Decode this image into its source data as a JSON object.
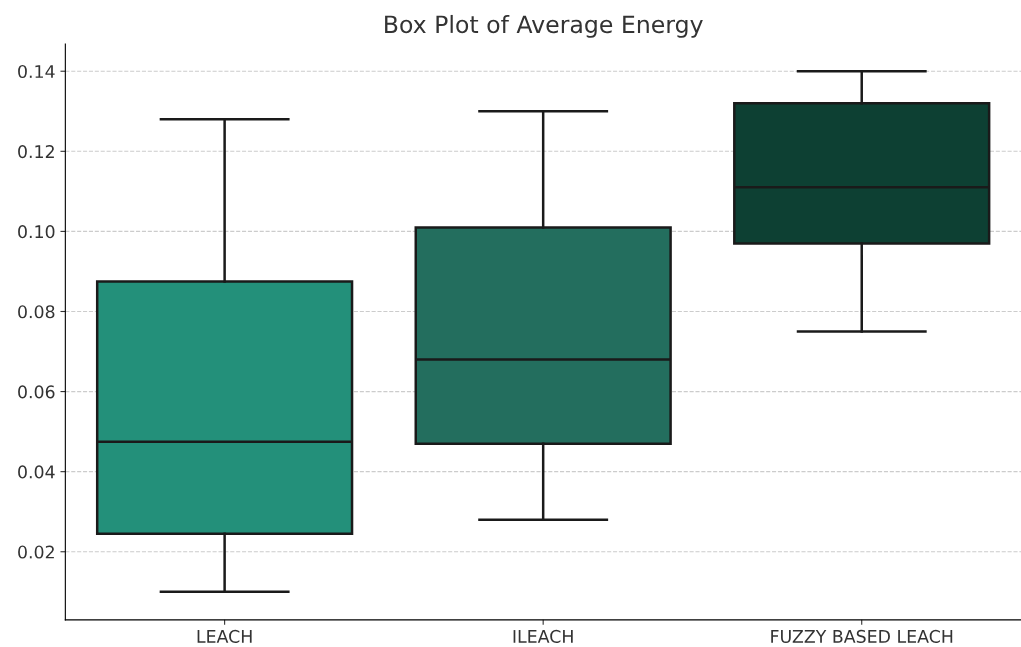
{
  "chart_data": {
    "type": "box",
    "title": "Box Plot of Average Energy",
    "categories": [
      "LEACH",
      "ILEACH",
      "FUZZY BASED LEACH"
    ],
    "colors": [
      "#23907a",
      "#236e5e",
      "#0d4033"
    ],
    "boxes": [
      {
        "low": 0.01,
        "q1": 0.0245,
        "median": 0.0475,
        "q3": 0.0875,
        "high": 0.128
      },
      {
        "low": 0.028,
        "q1": 0.047,
        "median": 0.068,
        "q3": 0.101,
        "high": 0.13
      },
      {
        "low": 0.075,
        "q1": 0.097,
        "median": 0.111,
        "q3": 0.132,
        "high": 0.14
      }
    ],
    "ylim": [
      0.003,
      0.1468
    ],
    "yticks": [
      {
        "value": 0.02,
        "label": "0.02"
      },
      {
        "value": 0.04,
        "label": "0.04"
      },
      {
        "value": 0.06,
        "label": "0.06"
      },
      {
        "value": 0.08,
        "label": "0.08"
      },
      {
        "value": 0.1,
        "label": "0.10"
      },
      {
        "value": 0.12,
        "label": "0.12"
      },
      {
        "value": 0.14,
        "label": "0.14"
      }
    ],
    "grid": "y"
  }
}
